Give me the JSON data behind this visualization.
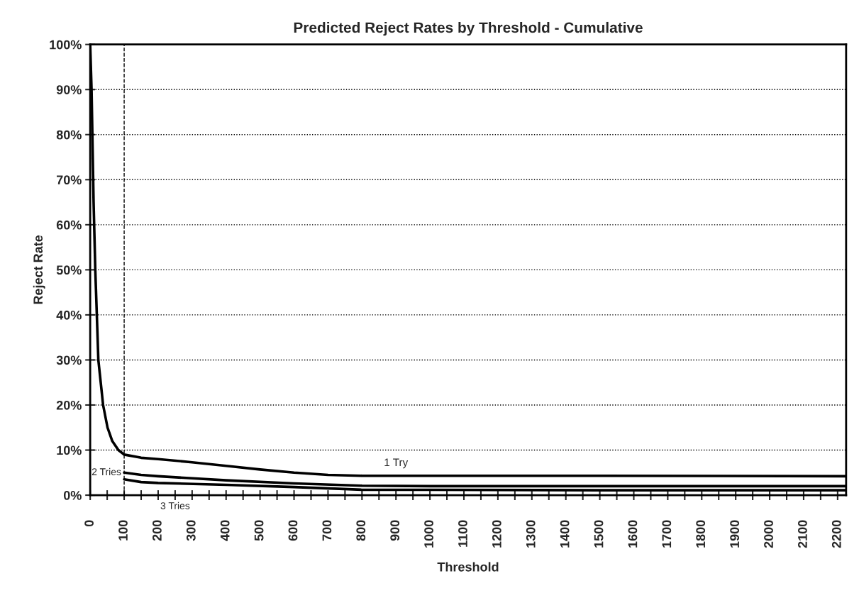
{
  "chart_data": {
    "type": "line",
    "title": "Predicted Reject Rates by Threshold - Cumulative",
    "xlabel": "Threshold",
    "ylabel": "Reject Rate",
    "xlim": [
      0,
      2225
    ],
    "ylim": [
      0,
      100
    ],
    "xticks": [
      0,
      {
        "value": 50,
        "label": null
      },
      100,
      {
        "value": 150,
        "label": null
      },
      200,
      {
        "value": 250,
        "label": null
      },
      300,
      {
        "value": 350,
        "label": null
      },
      400,
      {
        "value": 450,
        "label": null
      },
      500,
      {
        "value": 550,
        "label": null
      },
      600,
      {
        "value": 650,
        "label": null
      },
      700,
      {
        "value": 750,
        "label": null
      },
      800,
      {
        "value": 850,
        "label": null
      },
      900,
      {
        "value": 950,
        "label": null
      },
      1000,
      {
        "value": 1050,
        "label": null
      },
      1100,
      {
        "value": 1150,
        "label": null
      },
      1200,
      {
        "value": 1250,
        "label": null
      },
      1300,
      {
        "value": 1350,
        "label": null
      },
      1400,
      {
        "value": 1450,
        "label": null
      },
      1500,
      {
        "value": 1550,
        "label": null
      },
      1600,
      {
        "value": 1650,
        "label": null
      },
      1700,
      {
        "value": 1750,
        "label": null
      },
      1800,
      {
        "value": 1850,
        "label": null
      },
      1900,
      {
        "value": 1950,
        "label": null
      },
      2000,
      {
        "value": 2050,
        "label": null
      },
      2100,
      {
        "value": 2150,
        "label": null
      },
      2200
    ],
    "yticks": [
      {
        "value": 0,
        "label": "0%"
      },
      {
        "value": 10,
        "label": "10%"
      },
      {
        "value": 20,
        "label": "20%"
      },
      {
        "value": 30,
        "label": "30%"
      },
      {
        "value": 40,
        "label": "40%"
      },
      {
        "value": 50,
        "label": "50%"
      },
      {
        "value": 60,
        "label": "60%"
      },
      {
        "value": 70,
        "label": "70%"
      },
      {
        "value": 80,
        "label": "80%"
      },
      {
        "value": 90,
        "label": "90%"
      },
      {
        "value": 100,
        "label": "100%"
      }
    ],
    "grid": "y",
    "legend": false,
    "marker": "none",
    "line_style": "solid",
    "ref_lines": [
      {
        "axis": "x",
        "value": 100,
        "line_style": "dashed",
        "color": "#000000"
      }
    ],
    "series": [
      {
        "name": "1 Try",
        "color": "#000000",
        "x": [
          0,
          4,
          10,
          15,
          24,
          38,
          51,
          65,
          83,
          100,
          150,
          200,
          300,
          400,
          500,
          600,
          700,
          800,
          1000,
          1500,
          2225
        ],
        "values": [
          100,
          90,
          65,
          50,
          30,
          20,
          15,
          12,
          10,
          9,
          8.3,
          8,
          7.3,
          6.5,
          5.7,
          5,
          4.5,
          4.3,
          4.3,
          4.3,
          4.2
        ]
      },
      {
        "name": "2 Tries",
        "color": "#000000",
        "x": [
          100,
          150,
          200,
          400,
          600,
          800,
          1000,
          1500,
          2225
        ],
        "values": [
          5,
          4.5,
          4.2,
          3.3,
          2.6,
          2.1,
          2,
          2,
          2
        ]
      },
      {
        "name": "3 Tries",
        "color": "#000000",
        "x": [
          100,
          150,
          200,
          400,
          600,
          800,
          1000,
          1500,
          2225
        ],
        "values": [
          3.5,
          2.9,
          2.7,
          2.3,
          1.8,
          1.2,
          1.2,
          1.1,
          1.1
        ]
      }
    ]
  }
}
